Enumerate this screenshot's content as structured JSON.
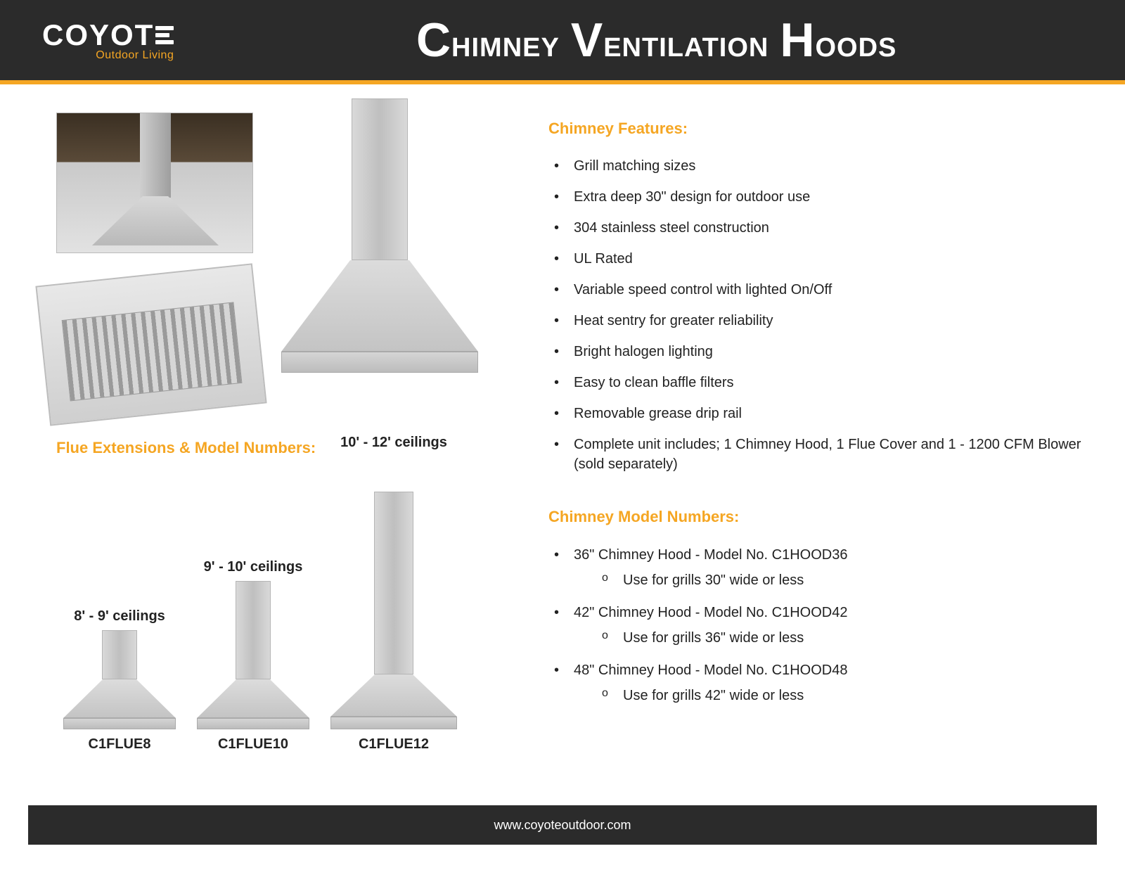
{
  "brand": {
    "name": "COYOT",
    "tagline": "Outdoor Living",
    "accent_color": "#f5a623",
    "header_bg": "#2b2b2b"
  },
  "page_title": {
    "c1": "C",
    "w1": "himney ",
    "c2": "V",
    "w2": "entilation ",
    "c3": "H",
    "w3": "oods"
  },
  "features": {
    "heading": "Chimney Features:",
    "items": [
      "Grill matching sizes",
      "Extra deep 30\" design for outdoor use",
      "304 stainless steel construction",
      "UL Rated",
      "Variable speed control with lighted On/Off",
      "Heat sentry for greater reliability",
      "Bright halogen lighting",
      "Easy to clean baffle filters",
      "Removable grease drip rail",
      "Complete unit includes; 1 Chimney Hood, 1 Flue Cover and 1 - 1200 CFM Blower (sold separately)"
    ]
  },
  "models": {
    "heading": "Chimney Model Numbers:",
    "items": [
      {
        "main": "36\" Chimney Hood - Model No. C1HOOD36",
        "sub": "Use for grills 30\" wide or less"
      },
      {
        "main": "42\" Chimney Hood - Model No. C1HOOD42",
        "sub": "Use for grills 36\" wide or less"
      },
      {
        "main": "48\" Chimney Hood - Model No. C1HOOD48",
        "sub": "Use for grills 42\" wide or less"
      }
    ]
  },
  "flues": {
    "heading": "Flue Extensions & Model Numbers:",
    "main_hood": {
      "flue_w": 80,
      "flue_h": 230,
      "hood_w": 280,
      "top_h": 130,
      "base_h": 30
    },
    "items": [
      {
        "ceiling": "8' - 9'\nceilings",
        "model": "C1FLUE8",
        "flue_w": 50,
        "flue_h": 70,
        "hood_w": 160,
        "top_h": 55,
        "base_h": 16
      },
      {
        "ceiling": "9' - 10'\nceilings",
        "model": "C1FLUE10",
        "flue_w": 50,
        "flue_h": 140,
        "hood_w": 160,
        "top_h": 55,
        "base_h": 16
      },
      {
        "ceiling": "10' - 12'\nceilings",
        "model": "C1FLUE12",
        "flue_w": 56,
        "flue_h": 260,
        "hood_w": 180,
        "top_h": 60,
        "base_h": 18
      }
    ]
  },
  "footer": {
    "url": "www.coyoteoutdoor.com"
  }
}
